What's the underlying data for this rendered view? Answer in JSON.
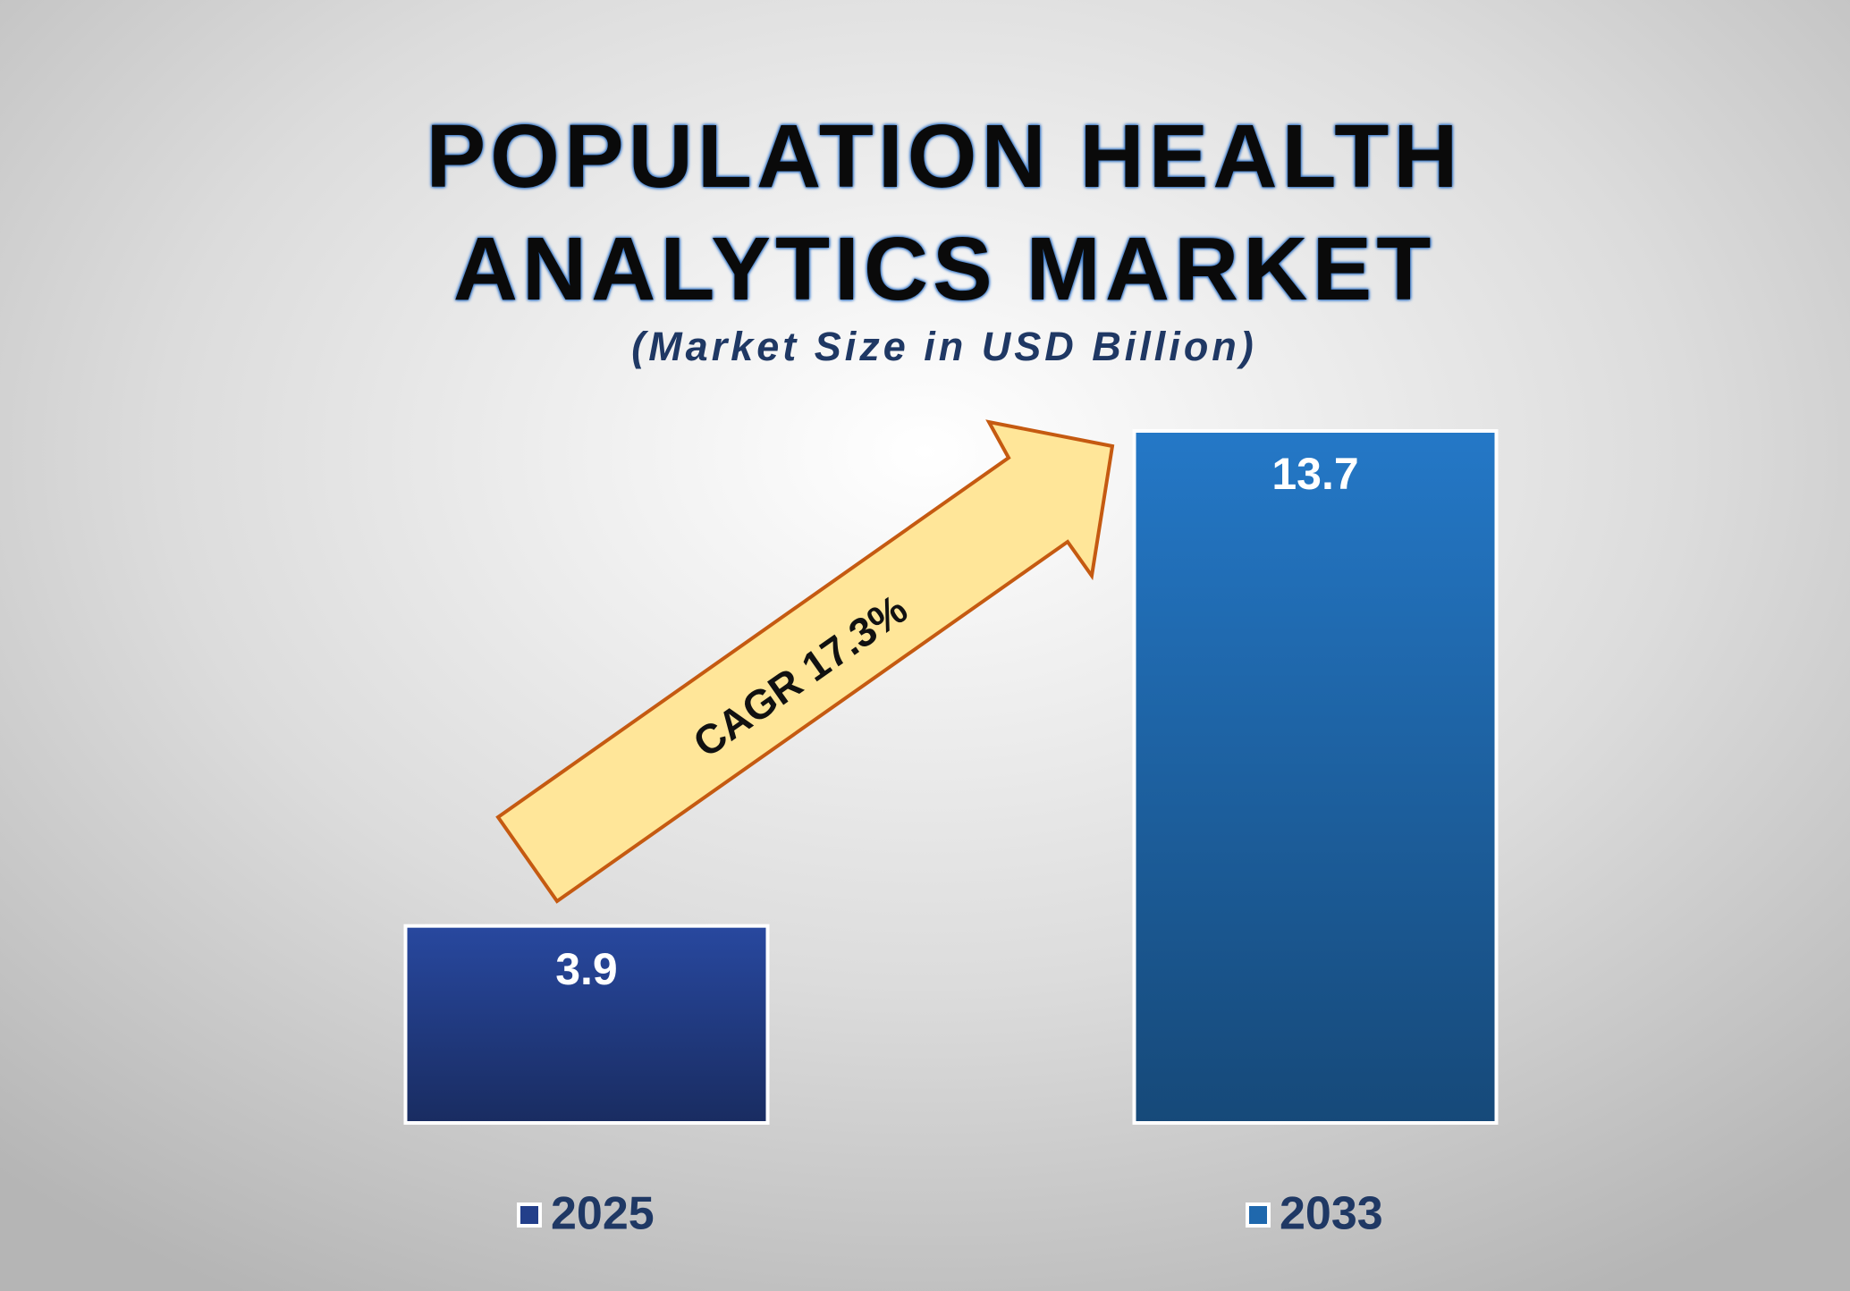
{
  "chart_data": {
    "type": "bar",
    "title": "POPULATION HEALTH ANALYTICS MARKET",
    "subtitle": "(Market Size in USD Billion)",
    "annotation": "CAGR 17.3%",
    "categories": [
      "2025",
      "2033"
    ],
    "values": [
      3.9,
      13.7
    ],
    "colors": [
      "#233f8a",
      "#1f68ad"
    ],
    "legend": "bottom"
  }
}
